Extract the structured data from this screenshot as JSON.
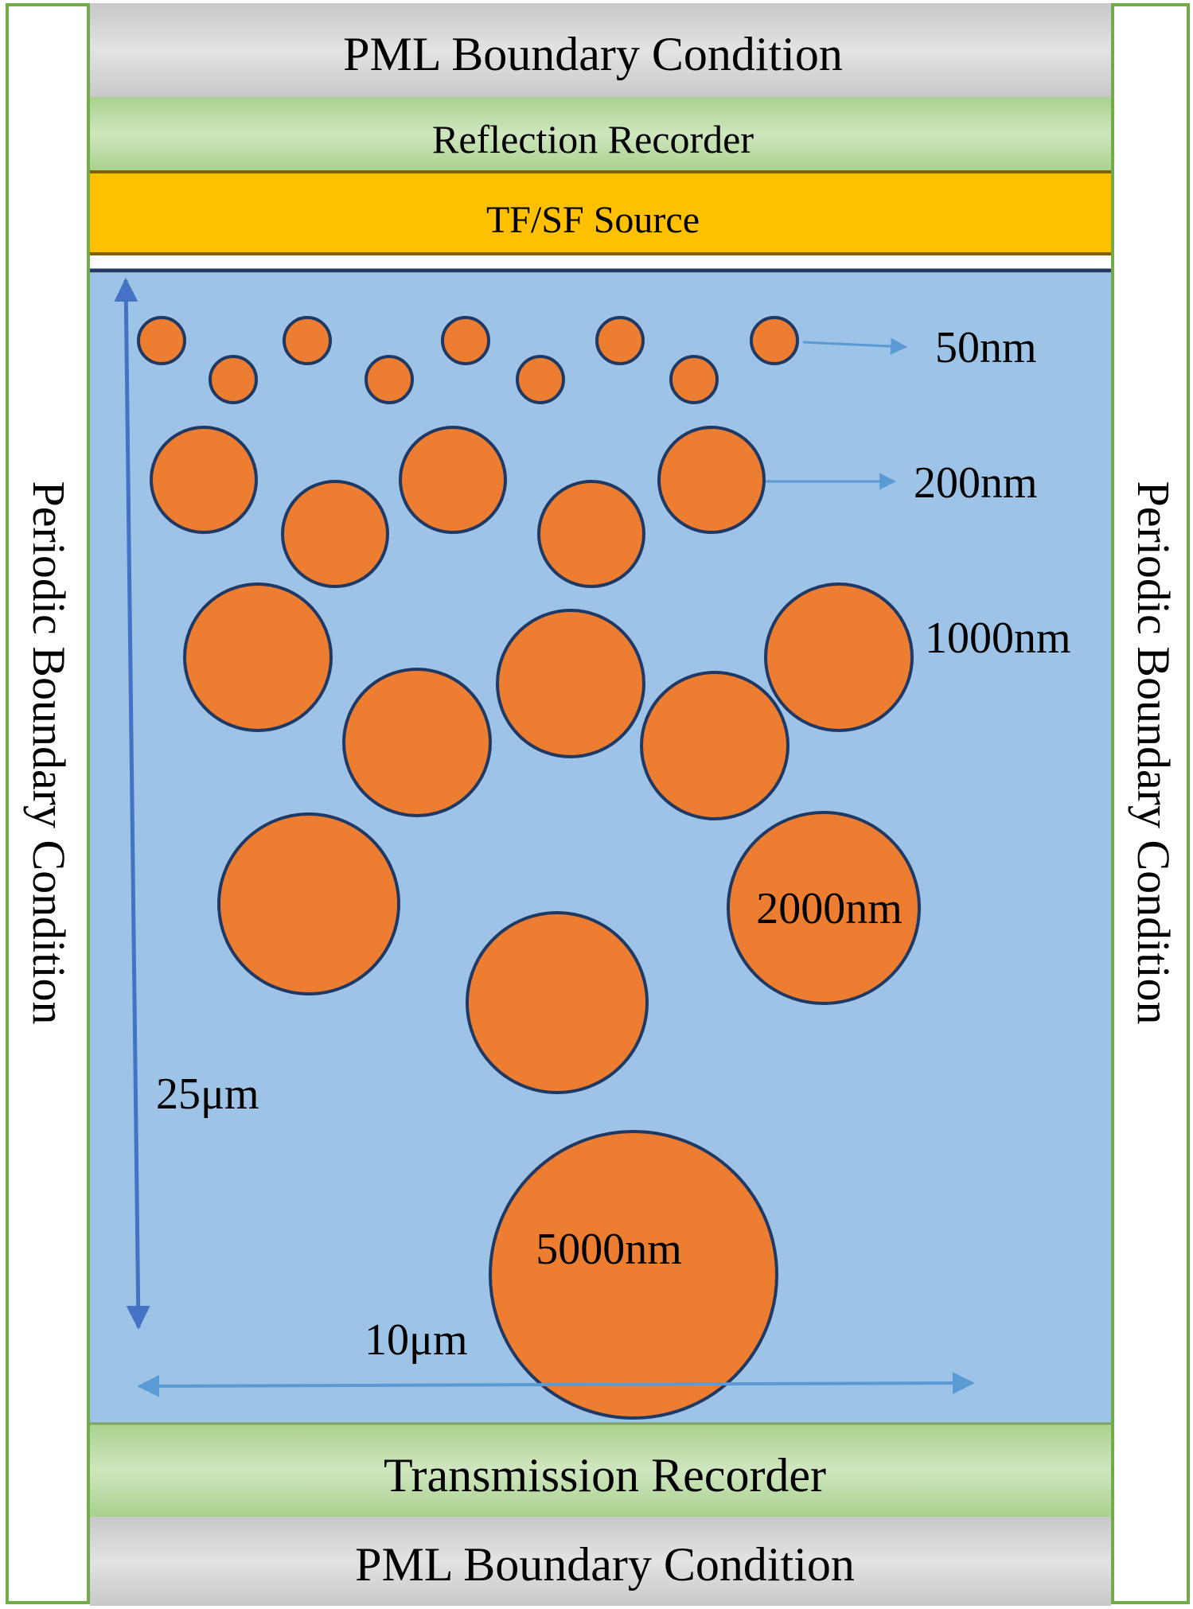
{
  "layers": {
    "pml_top": "PML Boundary Condition",
    "reflection_recorder": "Reflection Recorder",
    "source": "TF/SF Source",
    "transmission_recorder": "Transmission Recorder",
    "pml_bottom": "PML Boundary Condition"
  },
  "side_labels": {
    "left": "Periodic Boundary Condition",
    "right": "Periodic Boundary Condition"
  },
  "particle_labels": {
    "d50": "50nm",
    "d200": "200nm",
    "d1000": "1000nm",
    "d2000": "2000nm",
    "d5000": "5000nm"
  },
  "dimensions": {
    "height": "25μm",
    "width": "10μm"
  },
  "colors": {
    "pml": "#d0d0d0",
    "recorder": "#a9d18e",
    "source": "#ffc000",
    "domain": "#9dc3e6",
    "particle_fill": "#ed7d31",
    "particle_stroke": "#1f3864",
    "arrow": "#4472c4",
    "frame": "#70ad47"
  }
}
